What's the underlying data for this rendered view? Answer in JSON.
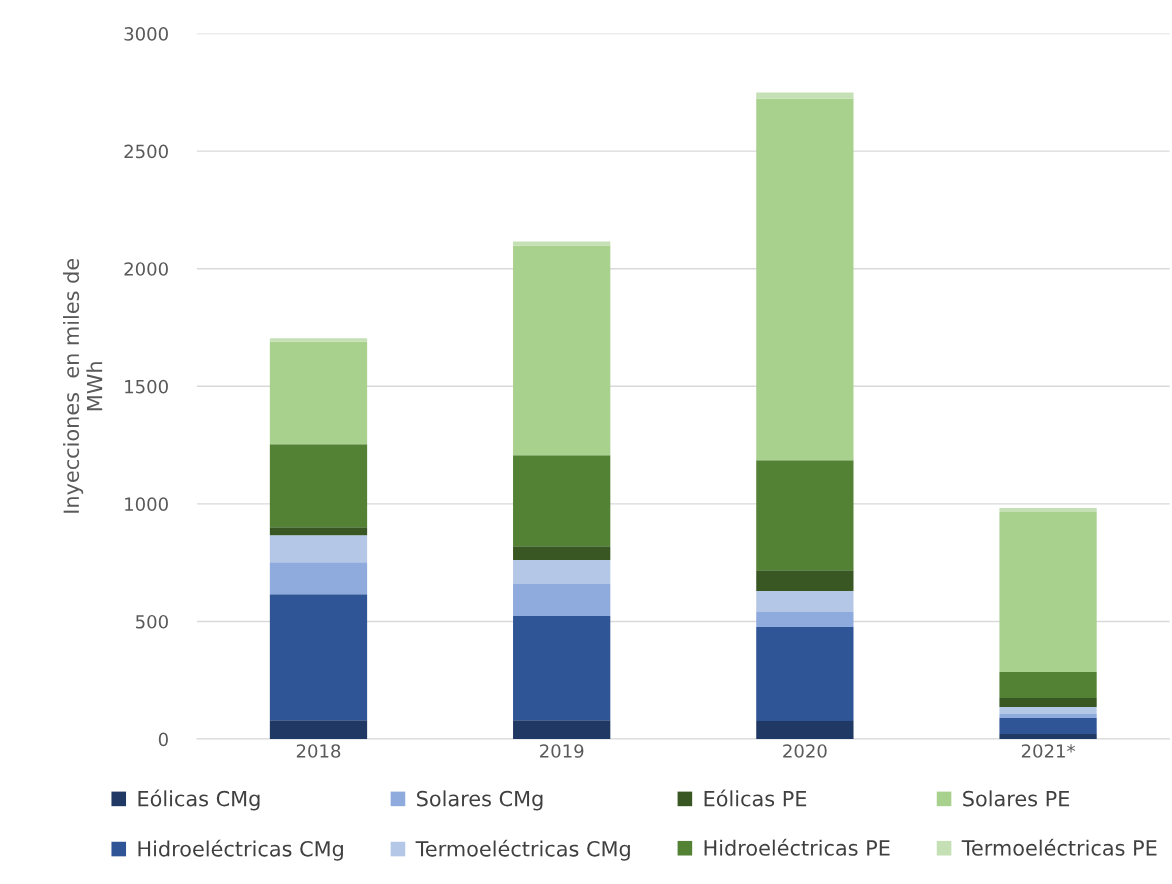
{
  "chart_data": {
    "type": "bar",
    "stacked": true,
    "ylabel": "Inyecciones  en miles de\nMWh",
    "categories": [
      "2018",
      "2019",
      "2020",
      "2021*"
    ],
    "series": [
      {
        "name": "Eólicas CMg",
        "color": "#1f3864",
        "values": [
          80,
          80,
          77,
          21
        ]
      },
      {
        "name": "Hidroeléctricas CMg",
        "color": "#2f5597",
        "values": [
          536,
          443,
          399,
          68
        ]
      },
      {
        "name": "Solares CMg",
        "color": "#8faadc",
        "values": [
          136,
          136,
          64,
          17
        ]
      },
      {
        "name": "Termoeléctricas CMg",
        "color": "#b4c7e7",
        "values": [
          115,
          102,
          89,
          30
        ]
      },
      {
        "name": "Eólicas PE",
        "color": "#385723",
        "values": [
          34,
          59,
          89,
          38
        ]
      },
      {
        "name": "Hidroeléctricas PE",
        "color": "#548235",
        "values": [
          353,
          387,
          468,
          111
        ]
      },
      {
        "name": "Solares PE",
        "color": "#a9d18e",
        "values": [
          437,
          892,
          1538,
          680
        ]
      },
      {
        "name": "Termoeléctricas PE",
        "color": "#c5e0b4",
        "values": [
          13,
          17,
          25,
          17
        ]
      }
    ],
    "ylim": [
      0,
      3000
    ],
    "yticks": [
      0,
      500,
      1000,
      1500,
      2000,
      2500,
      3000
    ],
    "grid": "y",
    "legend": "bottom"
  }
}
